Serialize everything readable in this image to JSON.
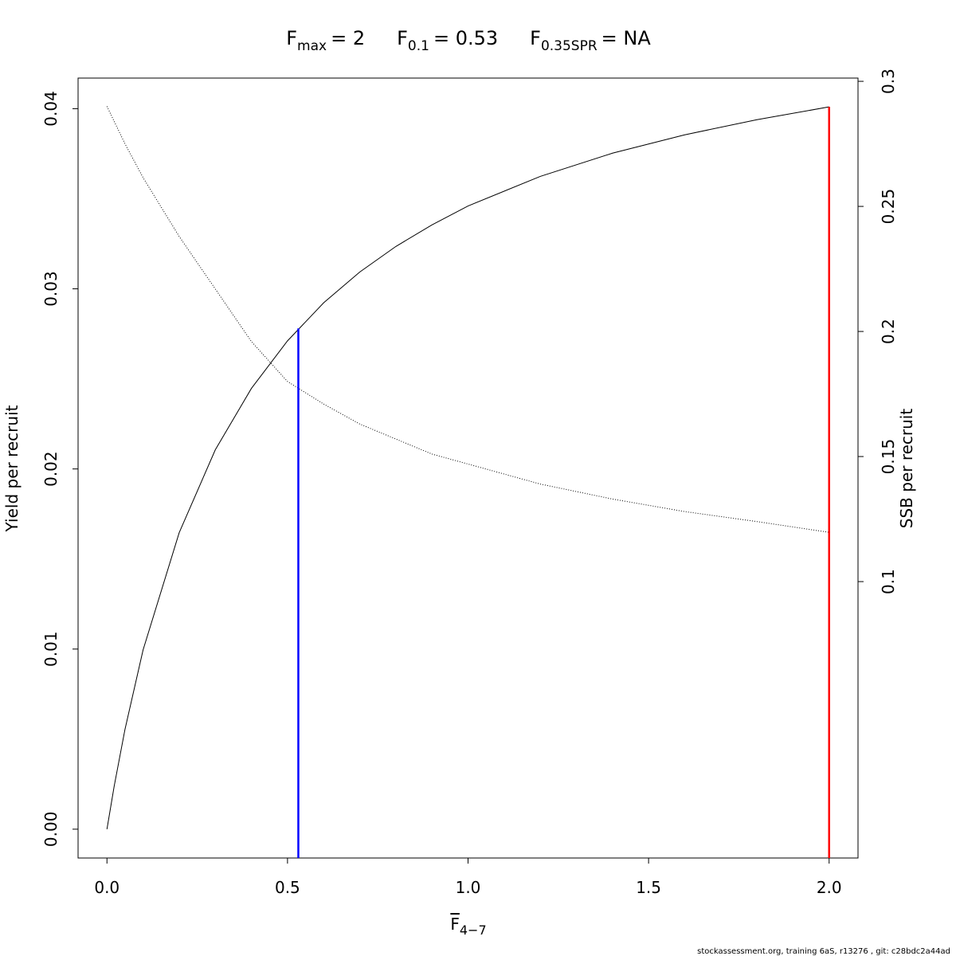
{
  "chart_data": {
    "type": "line",
    "title_parts": [
      {
        "symbol": "F",
        "subscript": "max",
        "rest": "= 2"
      },
      {
        "symbol": "F",
        "subscript": "0.1",
        "rest": "= 0.53"
      },
      {
        "symbol": "F",
        "subscript": "0.35SPR",
        "rest": "= NA"
      }
    ],
    "x_label": {
      "symbol": "F",
      "subscript": "4−7",
      "overline": true
    },
    "y_label": "Yield per recruit",
    "y2_label": "SSB per recruit",
    "footer": "stockassessment.org, training  6aS, r13276 , git: c28bdc2a44ad",
    "x": [
      0,
      0.02,
      0.05,
      0.1,
      0.2,
      0.3,
      0.4,
      0.5,
      0.6,
      0.7,
      0.8,
      0.9,
      1.0,
      1.2,
      1.4,
      1.6,
      1.8,
      2.0
    ],
    "series": [
      {
        "color": "#000000",
        "line_style": "solid",
        "values": [
          0,
          0.00239,
          0.00555,
          0.00995,
          0.01646,
          0.02106,
          0.02447,
          0.02711,
          0.02922,
          0.03093,
          0.03235,
          0.03355,
          0.0346,
          0.03624,
          0.03753,
          0.03855,
          0.03939,
          0.0401
        ]
      },
      {
        "color": "#000000",
        "line_style": "dotted",
        "axis": "y2",
        "values": [
          0.29,
          0.284,
          0.275,
          0.2615,
          0.238,
          0.217,
          0.196,
          0.18,
          0.171,
          0.163,
          0.157,
          0.151,
          0.147,
          0.139,
          0.133,
          0.128,
          0.124,
          0.1197
        ]
      }
    ],
    "reference_lines": [
      {
        "x": 0.53,
        "y": 0.0278,
        "color": "#0000ff"
      },
      {
        "x": 2,
        "y": 0.0401,
        "color": "#ff0000"
      }
    ],
    "xlim": [
      -0.08,
      2.08
    ],
    "xticks": [
      {
        "value": 0,
        "label": "0.0"
      },
      0.5,
      {
        "value": 1,
        "label": "1.0"
      },
      1.5,
      {
        "value": 2,
        "label": "2.0"
      }
    ],
    "ylim": [
      -0.0016,
      0.0417
    ],
    "yticks": [
      {
        "value": 0,
        "label": "0.00"
      },
      0.01,
      0.02,
      0.03,
      0.04
    ],
    "y2lim": [
      -0.0105,
      0.3013
    ],
    "y2ticks": [
      0.1,
      0.15,
      0.2,
      0.25,
      0.3
    ]
  }
}
